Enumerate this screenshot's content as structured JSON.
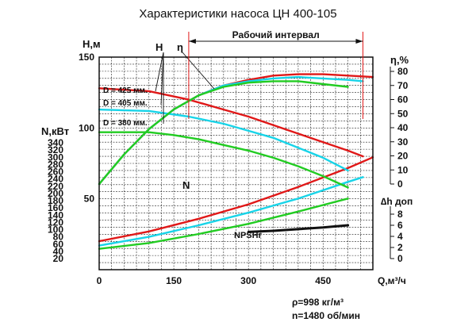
{
  "chart_data": {
    "type": "line",
    "title": "Характеристики насоса  ЦН 400-105",
    "operating_range_label": "Рабочий интервал",
    "x": {
      "label": "Q,м³/ч",
      "ticks": [
        "0",
        "150",
        "300",
        "450"
      ],
      "range": [
        0,
        550
      ]
    },
    "head_axis": {
      "label": "Н,м",
      "ticks": [
        "50",
        "100",
        "150"
      ],
      "range": [
        0,
        150
      ]
    },
    "power_axis": {
      "label": "N,кВт",
      "ticks": [
        "20",
        "40",
        "60",
        "80",
        "100",
        "120",
        "140",
        "160",
        "180",
        "200",
        "220",
        "240",
        "260",
        "280",
        "300",
        "320",
        "340"
      ],
      "range": [
        0,
        340
      ]
    },
    "efficiency_axis": {
      "label": "η,%",
      "ticks": [
        "0",
        "10",
        "20",
        "30",
        "40",
        "50",
        "60",
        "70",
        "80"
      ],
      "range": [
        0,
        80
      ]
    },
    "npsh_axis": {
      "label": "∆h доп",
      "ticks": [
        "0",
        "2",
        "4",
        "6",
        "8"
      ],
      "range": [
        0,
        8
      ]
    },
    "curve_labels": {
      "head": "Н",
      "efficiency": "η",
      "power": "N",
      "npsh": "NPSHr"
    },
    "impeller_labels": [
      "D = 425 мм.",
      "D = 405 мм.",
      "D = 380 мм."
    ],
    "operating_range": [
      180,
      530
    ],
    "colors": {
      "d425": "#e01818",
      "d405": "#18d4e8",
      "d380": "#22cc22",
      "npsh": "#111111",
      "grid": "#222222"
    },
    "series": [
      {
        "name": "D = 425 мм.",
        "color": "#e01818",
        "head": {
          "x": [
            0,
            100,
            180,
            250,
            300,
            350,
            400,
            450,
            500,
            530
          ],
          "y": [
            128,
            126,
            120,
            113,
            108,
            102,
            96,
            90,
            84,
            80
          ]
        },
        "efficiency": {
          "x": [
            0,
            50,
            100,
            150,
            200,
            250,
            300,
            350,
            400,
            450,
            500,
            550
          ],
          "y": [
            0,
            21,
            39,
            53,
            63,
            70,
            74,
            77,
            78,
            78,
            77,
            76
          ]
        },
        "power": {
          "x": [
            0,
            100,
            200,
            300,
            400,
            500,
            550
          ],
          "y": [
            68,
            95,
            130,
            170,
            218,
            270,
            300
          ]
        }
      },
      {
        "name": "D = 405 мм.",
        "color": "#18d4e8",
        "head": {
          "x": [
            0,
            100,
            180,
            250,
            300,
            350,
            400,
            450,
            500
          ],
          "y": [
            113,
            112,
            108,
            103,
            98,
            93,
            86,
            79,
            70
          ]
        },
        "efficiency": {
          "x": [
            0,
            50,
            100,
            150,
            200,
            250,
            300,
            350,
            400,
            450,
            500,
            530
          ],
          "y": [
            0,
            21,
            39,
            53,
            63,
            70,
            73,
            75,
            76,
            75,
            74,
            73
          ]
        },
        "power": {
          "x": [
            0,
            100,
            200,
            300,
            400,
            500,
            530
          ],
          "y": [
            56,
            80,
            112,
            147,
            186,
            232,
            245
          ]
        }
      },
      {
        "name": "D = 380 мм.",
        "color": "#22cc22",
        "head": {
          "x": [
            0,
            100,
            150,
            200,
            250,
            300,
            350,
            400,
            450,
            500
          ],
          "y": [
            97,
            97,
            95,
            92,
            88,
            84,
            79,
            73,
            66,
            58
          ]
        },
        "efficiency": {
          "x": [
            0,
            50,
            100,
            150,
            200,
            250,
            300,
            350,
            400,
            450,
            500
          ],
          "y": [
            0,
            21,
            39,
            53,
            63,
            69,
            72,
            73,
            73,
            71,
            69
          ]
        },
        "power": {
          "x": [
            0,
            100,
            200,
            300,
            400,
            500
          ],
          "y": [
            47,
            63,
            88,
            116,
            150,
            186
          ]
        }
      }
    ],
    "npsh": {
      "name": "NPSHr",
      "x": [
        300,
        350,
        400,
        450,
        500
      ],
      "y": [
        4.8,
        5.0,
        5.3,
        5.6,
        6.0
      ]
    },
    "annotations": {
      "density": "ρ=998 кг/м³",
      "speed": "n=1480 об/мин"
    },
    "grid": true
  }
}
